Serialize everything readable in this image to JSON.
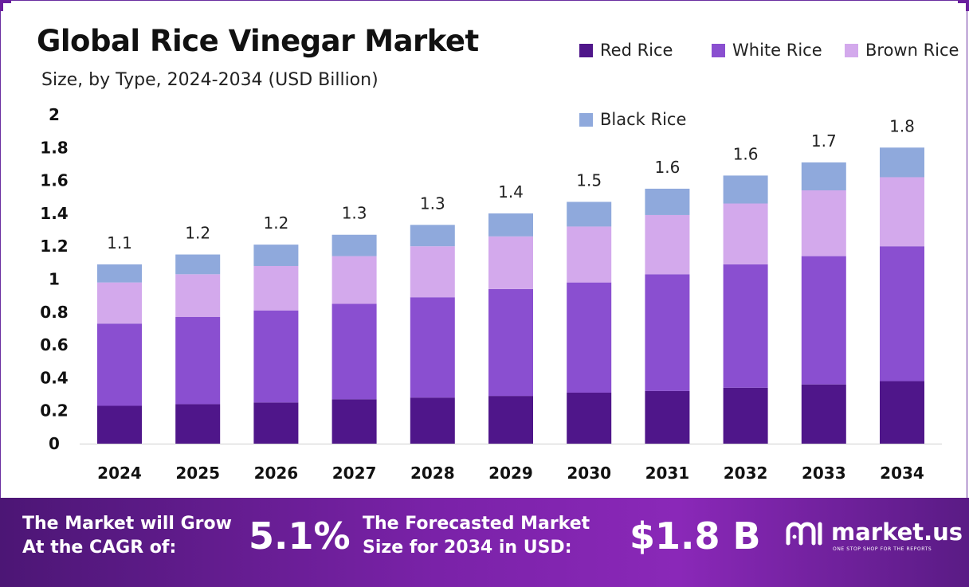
{
  "header": {
    "title": "Global Rice Vinegar Market",
    "subtitle": "Size, by Type, 2024-2034 (USD Billion)"
  },
  "colors": {
    "red_rice": "#4f168a",
    "white_rice": "#8a4fd0",
    "brown_rice": "#d3a9ec",
    "black_rice": "#8fa9dc",
    "bottom_bar": "#7a22a8",
    "frame": "#6a2fa0"
  },
  "chart_data": {
    "type": "bar",
    "stacked": true,
    "title": "Global Rice Vinegar Market",
    "subtitle": "Size, by Type, 2024-2034 (USD Billion)",
    "xlabel": "",
    "ylabel": "",
    "ylim": [
      0,
      2
    ],
    "yticks": [
      "0",
      "0.2",
      "0.4",
      "0.6",
      "0.8",
      "1",
      "1.2",
      "1.4",
      "1.6",
      "1.8",
      "2"
    ],
    "grid": false,
    "legend_position": "top-right",
    "categories": [
      "2024",
      "2025",
      "2026",
      "2027",
      "2028",
      "2029",
      "2030",
      "2031",
      "2032",
      "2033",
      "2034"
    ],
    "series": [
      {
        "name": "Red Rice",
        "color": "#4f168a",
        "values": [
          0.23,
          0.24,
          0.25,
          0.27,
          0.28,
          0.29,
          0.31,
          0.32,
          0.34,
          0.36,
          0.38
        ]
      },
      {
        "name": "White Rice",
        "color": "#8a4fd0",
        "values": [
          0.5,
          0.53,
          0.56,
          0.58,
          0.61,
          0.65,
          0.67,
          0.71,
          0.75,
          0.78,
          0.82
        ]
      },
      {
        "name": "Brown Rice",
        "color": "#d3a9ec",
        "values": [
          0.25,
          0.26,
          0.27,
          0.29,
          0.31,
          0.32,
          0.34,
          0.36,
          0.37,
          0.4,
          0.42
        ]
      },
      {
        "name": "Black Rice",
        "color": "#8fa9dc",
        "values": [
          0.11,
          0.12,
          0.13,
          0.13,
          0.13,
          0.14,
          0.15,
          0.16,
          0.17,
          0.17,
          0.18
        ]
      }
    ],
    "totals": [
      1.1,
      1.2,
      1.2,
      1.3,
      1.3,
      1.4,
      1.5,
      1.6,
      1.6,
      1.7,
      1.8
    ],
    "total_labels": [
      "1.1",
      "1.2",
      "1.2",
      "1.3",
      "1.3",
      "1.4",
      "1.5",
      "1.6",
      "1.6",
      "1.7",
      "1.8"
    ]
  },
  "legend": [
    "Red Rice",
    "White Rice",
    "Brown Rice",
    "Black Rice"
  ],
  "footer": {
    "cagr_label_line1": "The Market will Grow",
    "cagr_label_line2": "At the CAGR of:",
    "cagr_value": "5.1%",
    "forecast_label_line1": "The Forecasted Market",
    "forecast_label_line2": "Size for 2034 in USD:",
    "forecast_value": "$1.8 B",
    "brand_name": "market.us",
    "brand_tagline": "ONE STOP SHOP FOR THE REPORTS"
  }
}
